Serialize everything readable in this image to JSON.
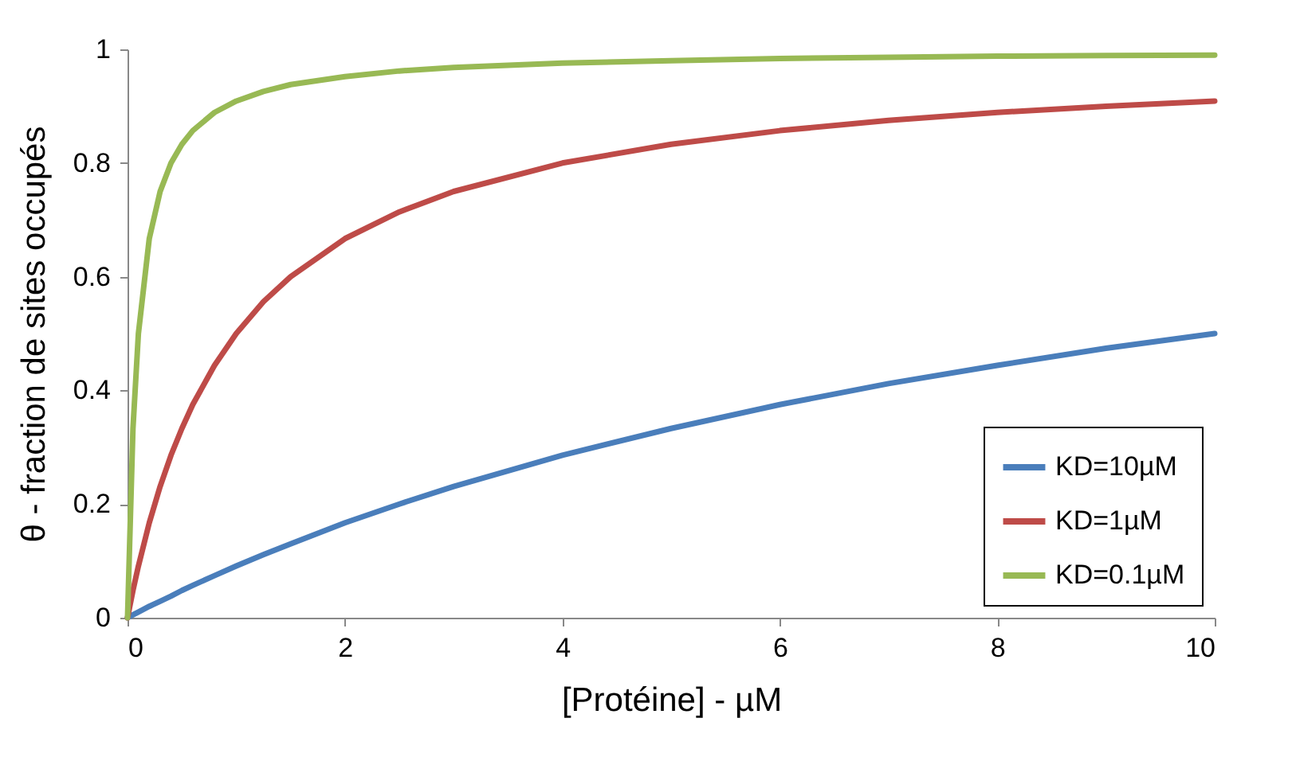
{
  "chart_data": {
    "type": "line",
    "xlabel": "[Protéine] - µM",
    "ylabel": "θ - fraction de sites occupés",
    "x": [
      0,
      0.05,
      0.1,
      0.2,
      0.3,
      0.4,
      0.5,
      0.6,
      0.8,
      1,
      1.25,
      1.5,
      2,
      2.5,
      3,
      4,
      5,
      6,
      7,
      8,
      9,
      10
    ],
    "series": [
      {
        "name": "KD=10µM",
        "color": "#4a7ebb",
        "values": [
          0,
          0.005,
          0.01,
          0.02,
          0.029,
          0.038,
          0.048,
          0.057,
          0.074,
          0.091,
          0.111,
          0.13,
          0.167,
          0.2,
          0.231,
          0.286,
          0.333,
          0.375,
          0.412,
          0.444,
          0.474,
          0.5
        ]
      },
      {
        "name": "KD=1µM",
        "color": "#be4b48",
        "values": [
          0,
          0.048,
          0.091,
          0.167,
          0.231,
          0.286,
          0.333,
          0.375,
          0.444,
          0.5,
          0.556,
          0.6,
          0.667,
          0.714,
          0.75,
          0.8,
          0.833,
          0.857,
          0.875,
          0.889,
          0.9,
          0.909
        ]
      },
      {
        "name": "KD=0.1µM",
        "color": "#98b954",
        "values": [
          0,
          0.333,
          0.5,
          0.667,
          0.75,
          0.8,
          0.833,
          0.857,
          0.889,
          0.909,
          0.926,
          0.938,
          0.952,
          0.962,
          0.968,
          0.976,
          0.98,
          0.984,
          0.986,
          0.988,
          0.989,
          0.99
        ]
      }
    ],
    "xlim": [
      0,
      10
    ],
    "xticks": [
      0,
      2,
      4,
      6,
      8,
      10
    ],
    "ylim": [
      0,
      1
    ],
    "yticks": [
      0,
      0.2,
      0.4,
      0.6,
      0.8,
      1
    ],
    "grid": false,
    "legend": "bottom right",
    "marker": "none",
    "line_style": "solid"
  }
}
